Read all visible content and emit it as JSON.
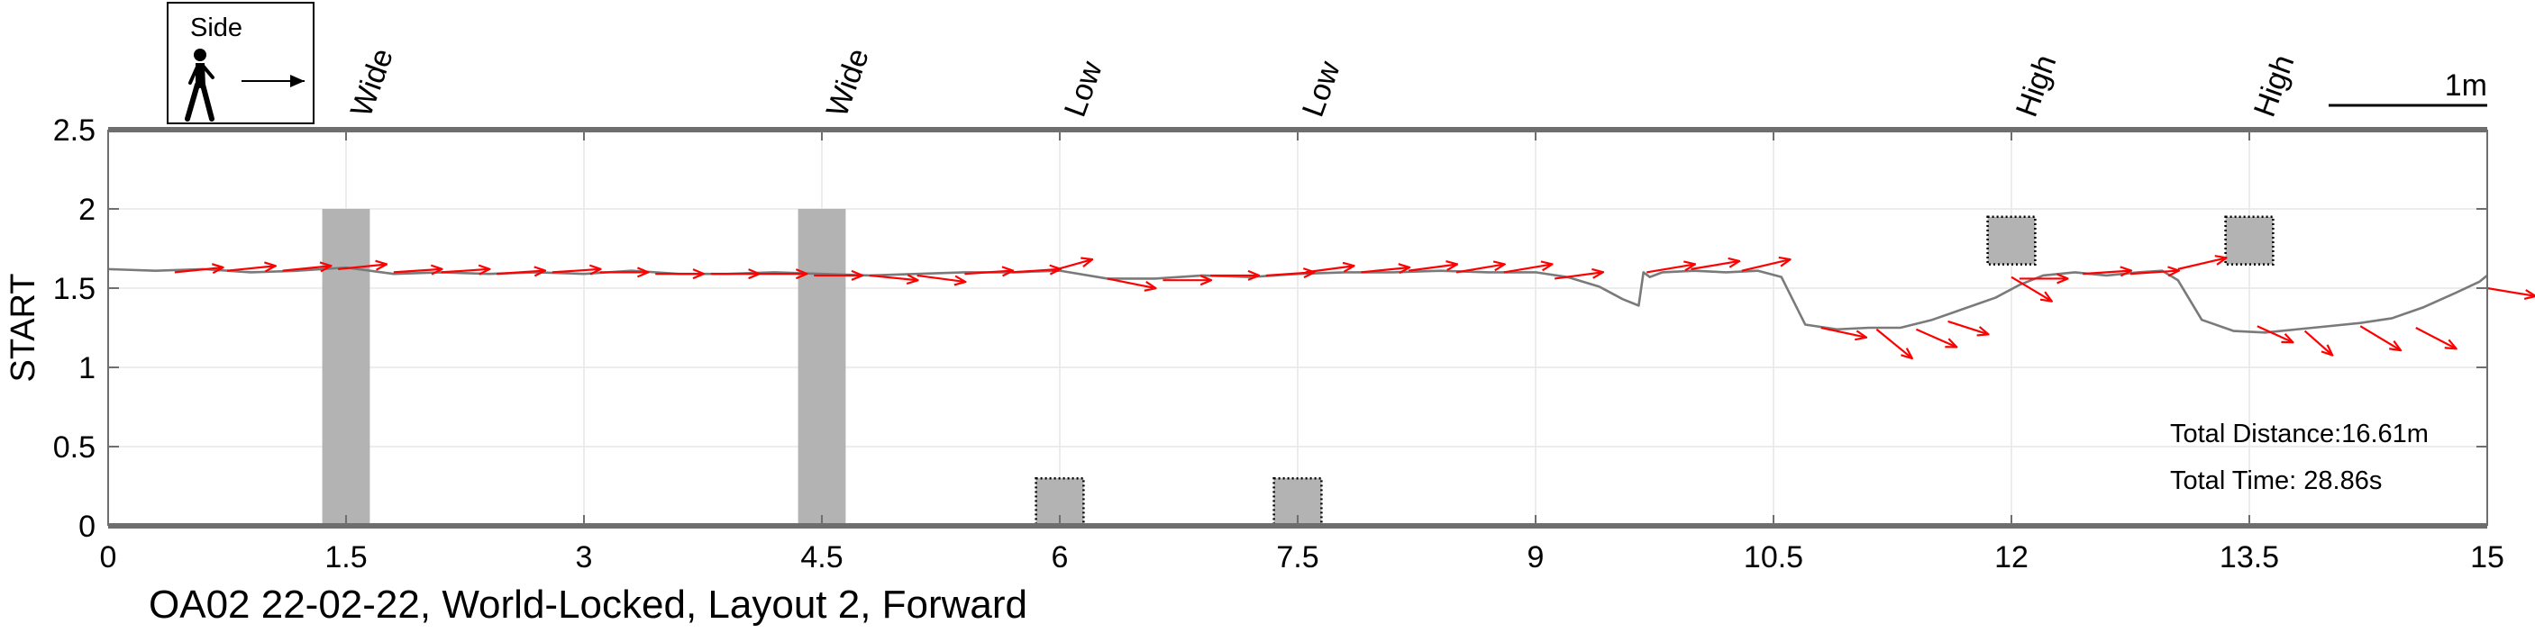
{
  "chart_data": {
    "type": "line",
    "caption": "OA02 22-02-22, World-Locked, Layout 2, Forward",
    "ylabel": "START",
    "xlim": [
      0,
      15
    ],
    "ylim": [
      0,
      2.5
    ],
    "x_ticks": [
      "0",
      "1.5",
      "3",
      "4.5",
      "6",
      "7.5",
      "9",
      "10.5",
      "12",
      "13.5",
      "15"
    ],
    "y_ticks": [
      "0",
      "0.5",
      "1",
      "1.5",
      "2",
      "2.5"
    ],
    "grid": true,
    "legend": {
      "label": "Side",
      "icon": "walking-person-icon",
      "placement": "top-left"
    },
    "scale_bar": {
      "label": "1m",
      "length": 1
    },
    "annotations": {
      "distance": "Total Distance:16.61m",
      "time": "Total Time: 28.86s"
    },
    "obstacles": [
      {
        "label": "Wide",
        "x": [
          1.35,
          1.65
        ],
        "y": [
          0,
          2.0
        ],
        "style": "solid"
      },
      {
        "label": "Wide",
        "x": [
          4.35,
          4.65
        ],
        "y": [
          0,
          2.0
        ],
        "style": "solid"
      },
      {
        "label": "Low",
        "x": [
          5.85,
          6.15
        ],
        "y": [
          0,
          0.3
        ],
        "style": "dotted"
      },
      {
        "label": "Low",
        "x": [
          7.35,
          7.65
        ],
        "y": [
          0,
          0.3
        ],
        "style": "dotted"
      },
      {
        "label": "High",
        "x": [
          11.85,
          12.15
        ],
        "y": [
          1.65,
          1.95
        ],
        "style": "dotted"
      },
      {
        "label": "High",
        "x": [
          13.35,
          13.65
        ],
        "y": [
          1.65,
          1.95
        ],
        "style": "dotted"
      }
    ],
    "path": {
      "x": [
        0,
        0.3,
        0.6,
        0.9,
        1.2,
        1.5,
        1.8,
        2.1,
        2.4,
        2.7,
        3.0,
        3.3,
        3.6,
        3.9,
        4.2,
        4.5,
        4.8,
        5.1,
        5.4,
        5.7,
        6.0,
        6.3,
        6.6,
        6.9,
        7.2,
        7.5,
        7.8,
        8.1,
        8.4,
        8.7,
        9.0,
        9.2,
        9.4,
        9.55,
        9.65,
        9.68,
        9.72,
        9.8,
        10.0,
        10.2,
        10.4,
        10.55,
        10.7,
        10.9,
        11.1,
        11.3,
        11.5,
        11.7,
        11.9,
        12.05,
        12.2,
        12.4,
        12.6,
        12.8,
        12.95,
        13.05,
        13.2,
        13.4,
        13.6,
        13.8,
        14.0,
        14.2,
        14.4,
        14.6,
        14.8,
        14.95,
        15.0
      ],
      "y": [
        1.62,
        1.61,
        1.62,
        1.6,
        1.61,
        1.63,
        1.59,
        1.6,
        1.59,
        1.6,
        1.59,
        1.61,
        1.59,
        1.59,
        1.6,
        1.59,
        1.58,
        1.59,
        1.6,
        1.6,
        1.61,
        1.56,
        1.56,
        1.58,
        1.57,
        1.59,
        1.6,
        1.6,
        1.61,
        1.6,
        1.6,
        1.57,
        1.51,
        1.43,
        1.39,
        1.6,
        1.57,
        1.6,
        1.61,
        1.6,
        1.61,
        1.57,
        1.27,
        1.24,
        1.25,
        1.25,
        1.3,
        1.37,
        1.44,
        1.52,
        1.58,
        1.6,
        1.58,
        1.6,
        1.61,
        1.55,
        1.3,
        1.23,
        1.22,
        1.24,
        1.26,
        1.28,
        1.31,
        1.38,
        1.47,
        1.54,
        1.58
      ]
    },
    "heading_arrows": [
      [
        0.42,
        1.6,
        0.3,
        0.03
      ],
      [
        0.75,
        1.61,
        0.3,
        0.03
      ],
      [
        1.1,
        1.61,
        0.3,
        0.03
      ],
      [
        1.45,
        1.62,
        0.3,
        0.03
      ],
      [
        1.8,
        1.6,
        0.3,
        0.02
      ],
      [
        2.1,
        1.6,
        0.3,
        0.02
      ],
      [
        2.45,
        1.59,
        0.3,
        0.02
      ],
      [
        2.8,
        1.6,
        0.3,
        0.02
      ],
      [
        3.1,
        1.6,
        0.3,
        0.0
      ],
      [
        3.45,
        1.59,
        0.3,
        0.0
      ],
      [
        3.8,
        1.59,
        0.3,
        0.0
      ],
      [
        4.1,
        1.59,
        0.3,
        0.0
      ],
      [
        4.45,
        1.58,
        0.3,
        0.0
      ],
      [
        4.8,
        1.58,
        0.3,
        -0.03
      ],
      [
        5.1,
        1.58,
        0.3,
        -0.04
      ],
      [
        5.4,
        1.59,
        0.3,
        0.02
      ],
      [
        5.7,
        1.6,
        0.3,
        0.02
      ],
      [
        5.95,
        1.61,
        0.25,
        0.07
      ],
      [
        6.3,
        1.56,
        0.3,
        -0.06
      ],
      [
        6.65,
        1.55,
        0.3,
        0.0
      ],
      [
        6.95,
        1.58,
        0.3,
        0.0
      ],
      [
        7.3,
        1.58,
        0.3,
        0.02
      ],
      [
        7.55,
        1.6,
        0.3,
        0.04
      ],
      [
        7.9,
        1.6,
        0.3,
        0.03
      ],
      [
        8.2,
        1.61,
        0.3,
        0.04
      ],
      [
        8.5,
        1.6,
        0.3,
        0.05
      ],
      [
        8.8,
        1.6,
        0.3,
        0.05
      ],
      [
        9.12,
        1.56,
        0.3,
        0.04
      ],
      [
        9.7,
        1.6,
        0.3,
        0.05
      ],
      [
        9.98,
        1.62,
        0.3,
        0.05
      ],
      [
        10.3,
        1.61,
        0.3,
        0.07
      ],
      [
        10.8,
        1.25,
        0.28,
        -0.06
      ],
      [
        11.15,
        1.24,
        0.22,
        -0.18
      ],
      [
        11.4,
        1.24,
        0.25,
        -0.11
      ],
      [
        11.6,
        1.29,
        0.25,
        -0.08
      ],
      [
        12.0,
        1.57,
        0.25,
        -0.15
      ],
      [
        12.05,
        1.56,
        0.3,
        0.0
      ],
      [
        12.45,
        1.59,
        0.3,
        0.02
      ],
      [
        12.75,
        1.59,
        0.3,
        0.02
      ],
      [
        13.05,
        1.62,
        0.3,
        0.07
      ],
      [
        13.55,
        1.26,
        0.22,
        -0.1
      ],
      [
        13.85,
        1.23,
        0.17,
        -0.15
      ],
      [
        14.2,
        1.26,
        0.25,
        -0.15
      ],
      [
        14.55,
        1.25,
        0.25,
        -0.13
      ],
      [
        15.0,
        1.5,
        0.3,
        -0.05
      ]
    ],
    "colors": {
      "path": "#7a7a7a",
      "arrows": "#ff0000",
      "obstacles": "#b3b3b3",
      "axes": "#6e6e6e",
      "grid": "#e6e6e6"
    }
  }
}
